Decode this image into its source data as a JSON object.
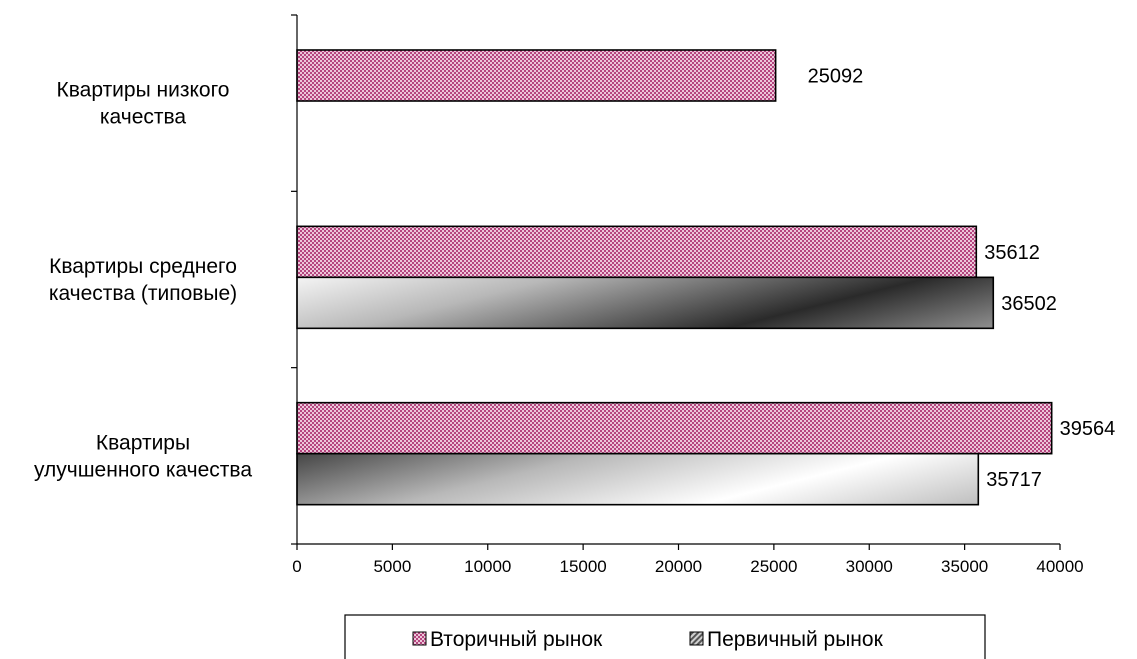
{
  "chart_data": {
    "type": "bar",
    "orientation": "horizontal",
    "title": "",
    "xlabel": "",
    "ylabel": "",
    "categories": [
      "Квартиры низкого качества",
      "Квартиры среднего качества (типовые)",
      "Квартиры улучшенного качества"
    ],
    "category_lines": [
      [
        "Квартиры низкого",
        "качества"
      ],
      [
        "Квартиры среднего",
        "качества (типовые)"
      ],
      [
        "Квартиры",
        "улучшенного качества"
      ]
    ],
    "series": [
      {
        "name": "Вторичный рынок",
        "values": [
          25092,
          35612,
          39564
        ],
        "labels": [
          "25092",
          "35612",
          "39564"
        ],
        "color": "#b03c78"
      },
      {
        "name": "Первичный рынок",
        "values": [
          null,
          36502,
          35717
        ],
        "labels": [
          "",
          "36502",
          "35717"
        ],
        "color": "#8a8a8a"
      }
    ],
    "xlim": [
      0,
      40000
    ],
    "xticks": [
      0,
      5000,
      10000,
      15000,
      20000,
      25000,
      30000,
      35000,
      40000
    ],
    "xtick_labels": [
      "0",
      "5000",
      "10000",
      "15000",
      "20000",
      "25000",
      "30000",
      "35000",
      "40000"
    ],
    "grid": false,
    "legend": "bottom"
  }
}
